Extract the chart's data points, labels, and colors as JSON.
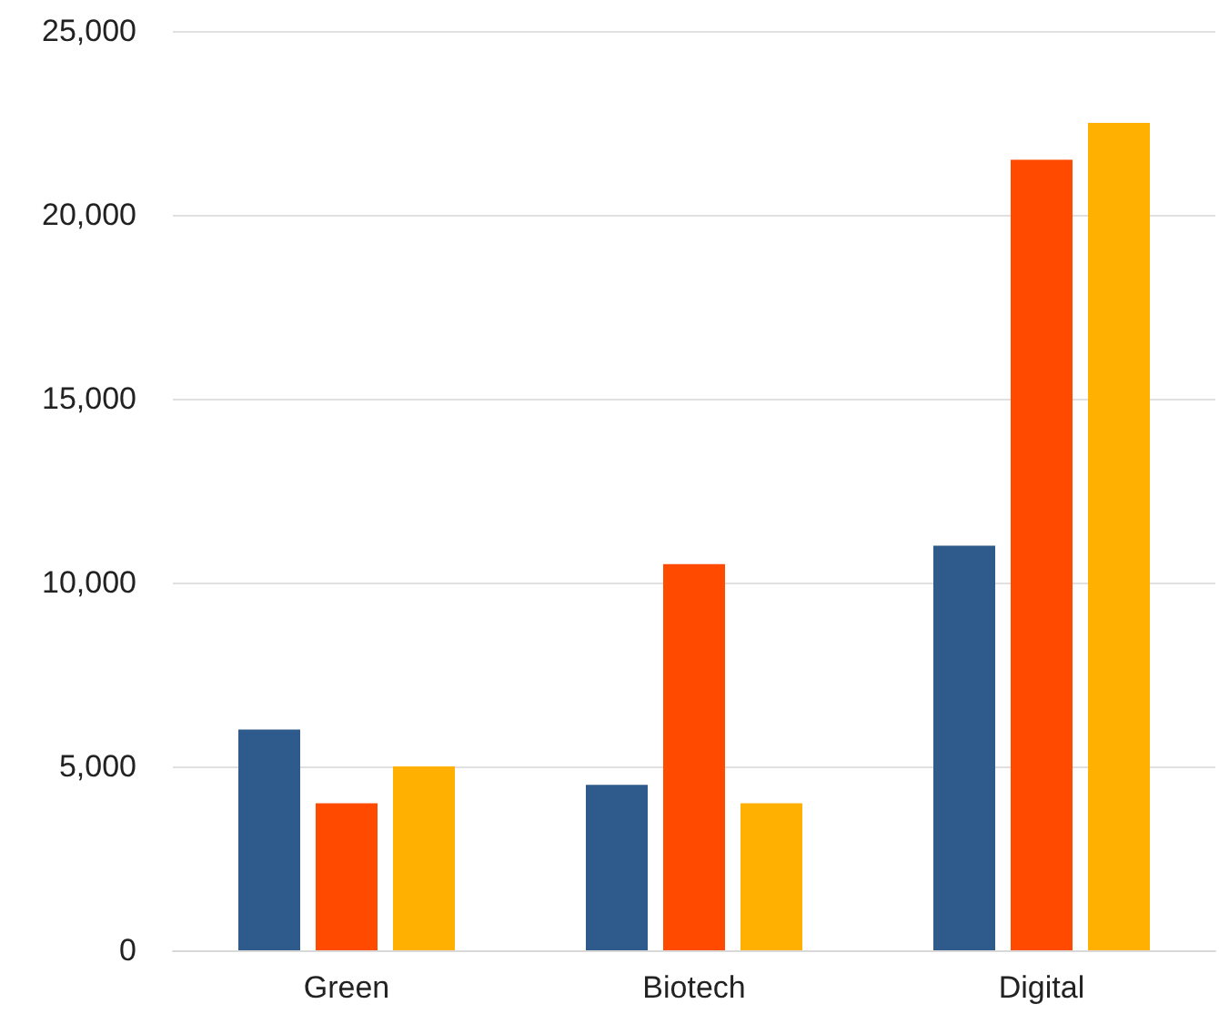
{
  "chart_data": {
    "type": "bar",
    "categories": [
      "Green",
      "Biotech",
      "Digital"
    ],
    "series": [
      {
        "color": "#2e5a8c",
        "values": [
          6000,
          4500,
          11000
        ]
      },
      {
        "color": "#ff4a00",
        "values": [
          4000,
          10500,
          21500
        ]
      },
      {
        "color": "#ffb000",
        "values": [
          5000,
          4000,
          22500
        ]
      }
    ],
    "ylim": [
      0,
      25000
    ],
    "yticks": [
      0,
      {
        "value": 5000,
        "label": "5,000"
      },
      {
        "value": 10000,
        "label": "10,000"
      },
      {
        "value": 15000,
        "label": "15,000"
      },
      {
        "value": 20000,
        "label": "20,000"
      },
      {
        "value": 25000,
        "label": "25,000"
      }
    ],
    "grid": "y"
  }
}
